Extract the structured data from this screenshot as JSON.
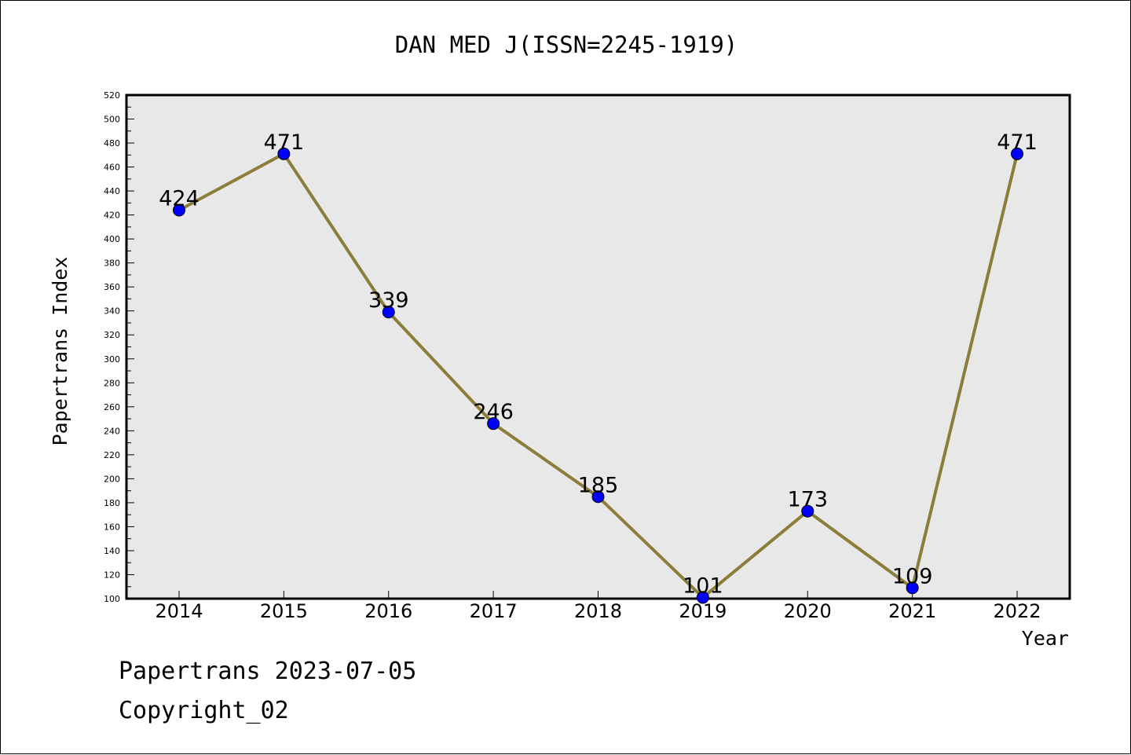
{
  "chart_data": {
    "type": "line",
    "title": "DAN MED J(ISSN=2245-1919)",
    "xlabel": "Year",
    "ylabel": "Papertrans Index",
    "categories": [
      "2014",
      "2015",
      "2016",
      "2017",
      "2018",
      "2019",
      "2020",
      "2021",
      "2022"
    ],
    "series": [
      {
        "values": [
          424,
          471,
          339,
          246,
          185,
          101,
          173,
          109,
          471
        ]
      }
    ],
    "ylim": [
      100,
      520
    ],
    "ytick_step": 20,
    "yticks": [
      "100",
      "120",
      "140",
      "160",
      "180",
      "200",
      "220",
      "240",
      "260",
      "280",
      "300",
      "320",
      "340",
      "360",
      "380",
      "400",
      "420",
      "440",
      "460",
      "480",
      "500",
      "520"
    ],
    "data_labels": [
      "424",
      "471",
      "339",
      "246",
      "185",
      "101",
      "173",
      "109",
      "471"
    ],
    "grid": false,
    "legend": "none",
    "colors": {
      "line": "#8b7d3a",
      "marker": "#0000ff",
      "plot_background": "#e8e8e8"
    }
  },
  "footer": {
    "date_text": "Papertrans 2023-07-05",
    "copyright_text": "Copyright_02"
  }
}
